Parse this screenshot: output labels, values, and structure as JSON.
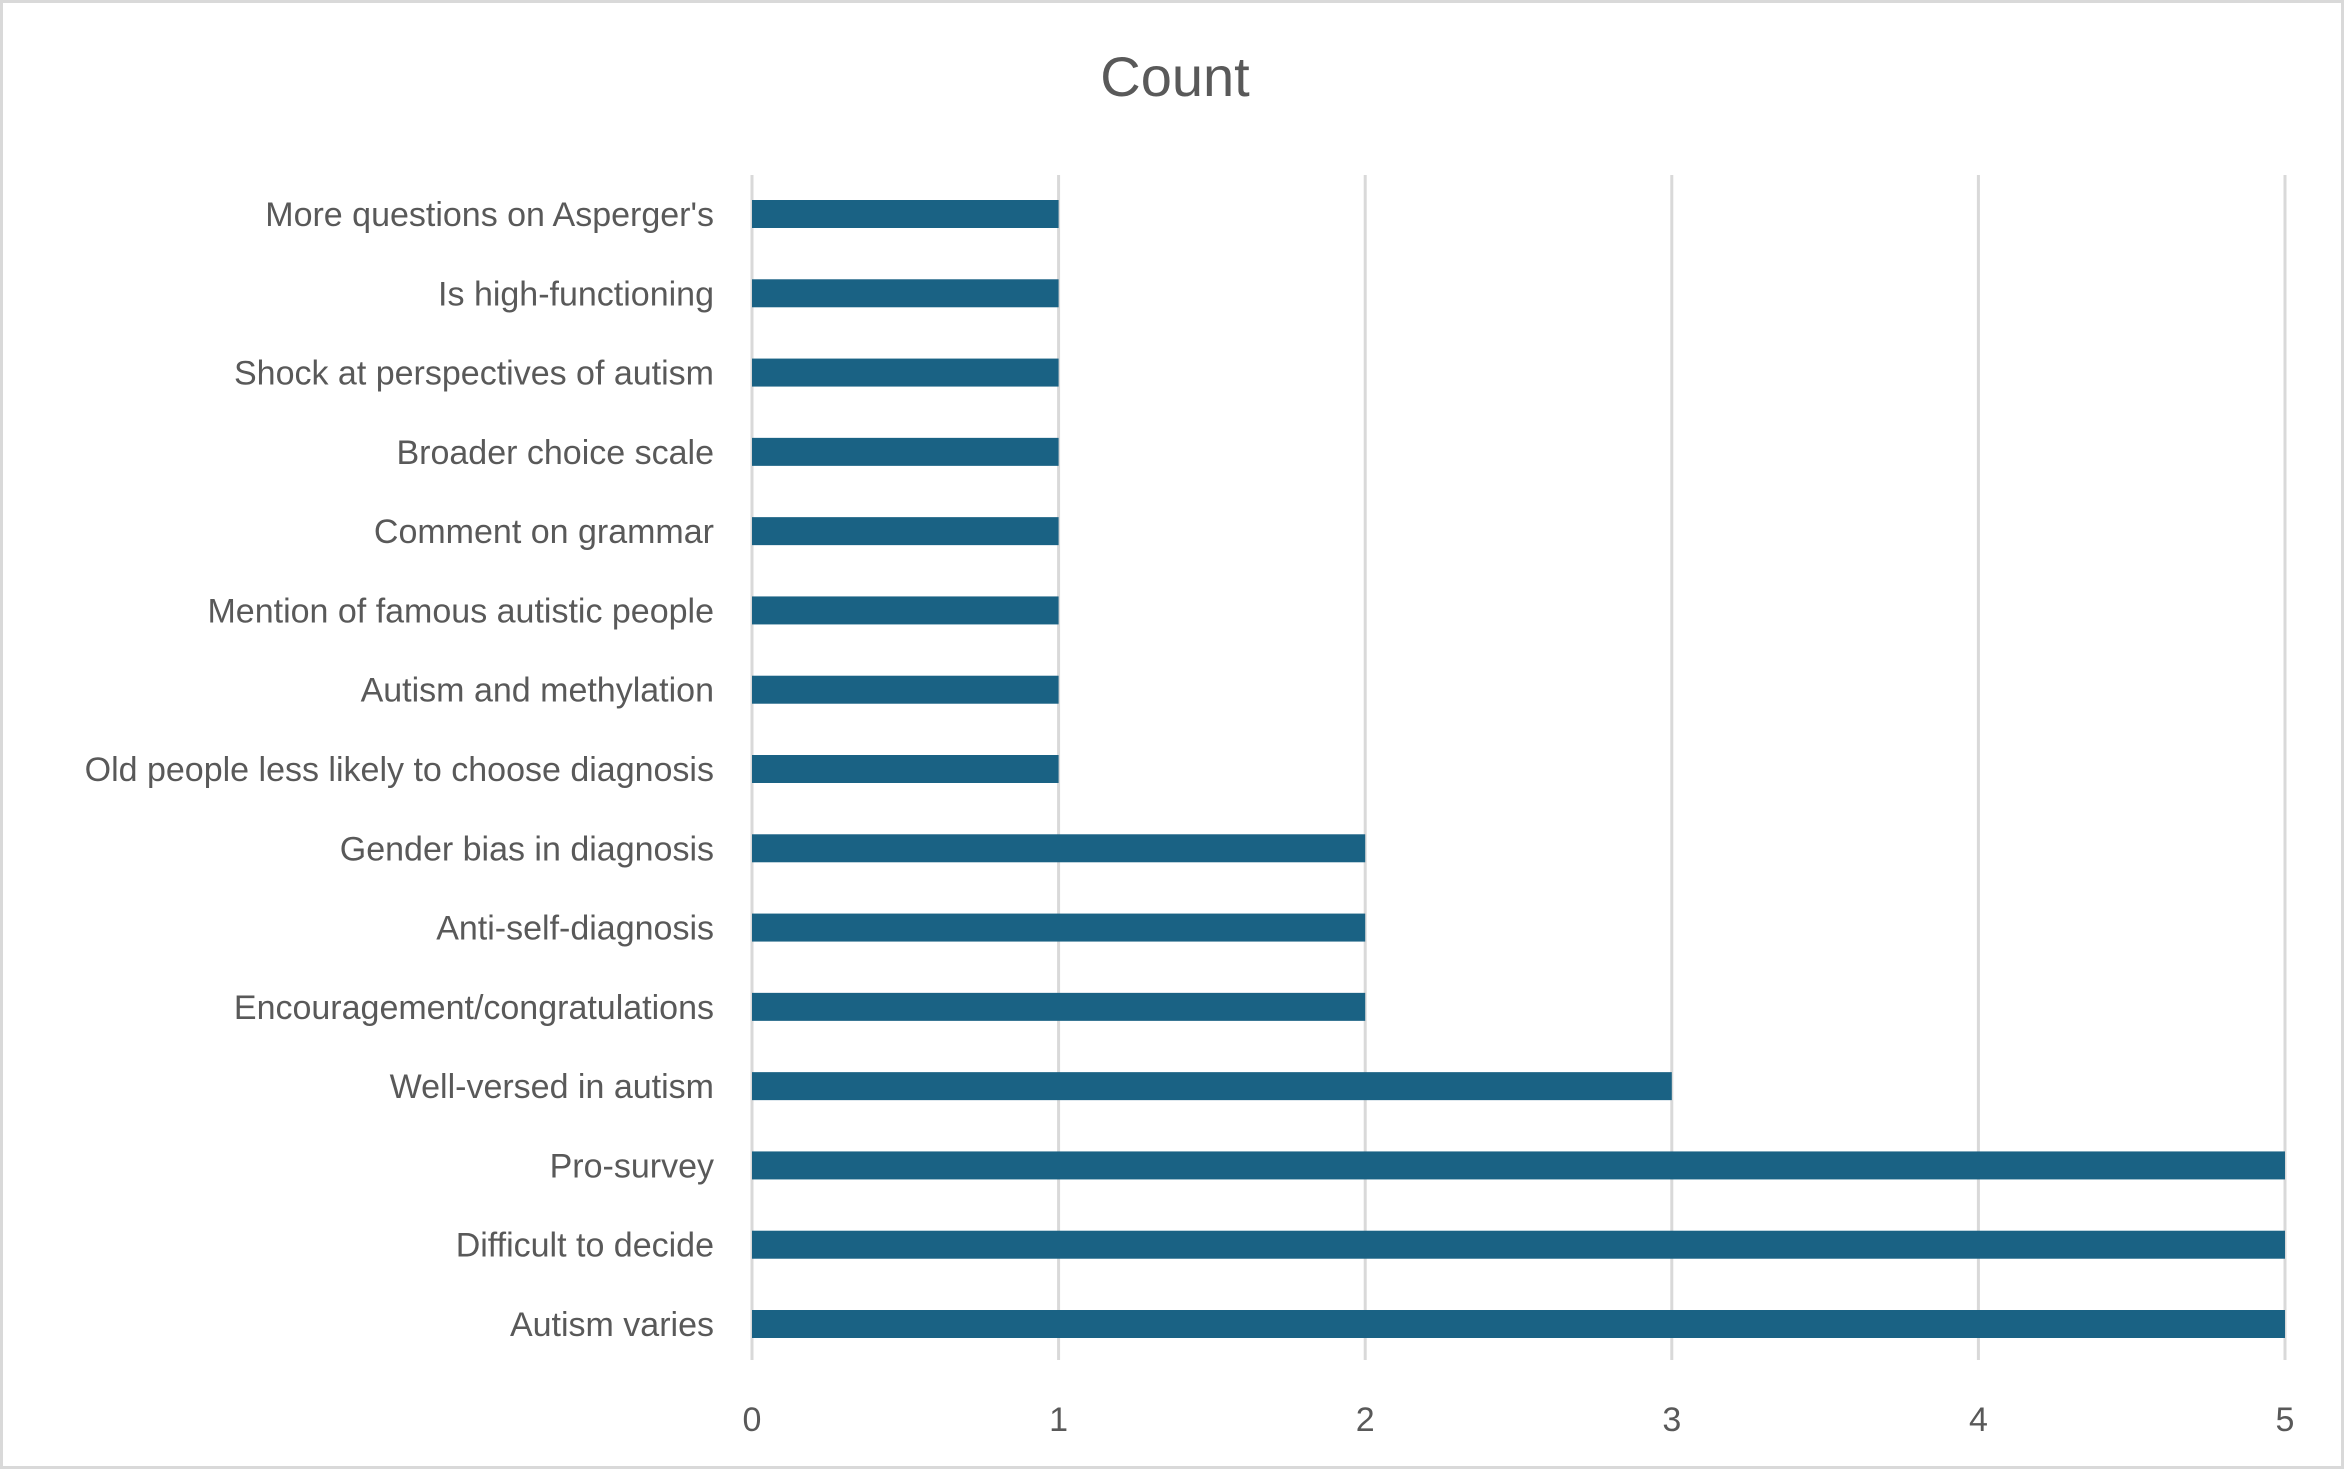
{
  "chart_data": {
    "type": "bar",
    "orientation": "horizontal",
    "title": "Count",
    "xlabel": "",
    "ylabel": "",
    "categories": [
      "More questions on Asperger's",
      "Is high-functioning",
      "Shock at perspectives of autism",
      "Broader choice scale",
      "Comment on grammar",
      "Mention of famous autistic people",
      "Autism and methylation",
      "Old people less likely to choose diagnosis",
      "Gender bias in diagnosis",
      "Anti-self-diagnosis",
      "Encouragement/congratulations",
      "Well-versed in autism",
      "Pro-survey",
      "Difficult to decide",
      "Autism varies"
    ],
    "values": [
      1,
      1,
      1,
      1,
      1,
      1,
      1,
      1,
      2,
      2,
      2,
      3,
      5,
      5,
      5
    ],
    "xlim": [
      0,
      5
    ],
    "xticks": [
      "0",
      "1",
      "2",
      "3",
      "4",
      "5"
    ],
    "grid": true,
    "legend": "none",
    "colors": {
      "bar": "#1a6284",
      "grid": "#d9d9d9",
      "text": "#595959",
      "border": "#d9d9d9"
    }
  }
}
